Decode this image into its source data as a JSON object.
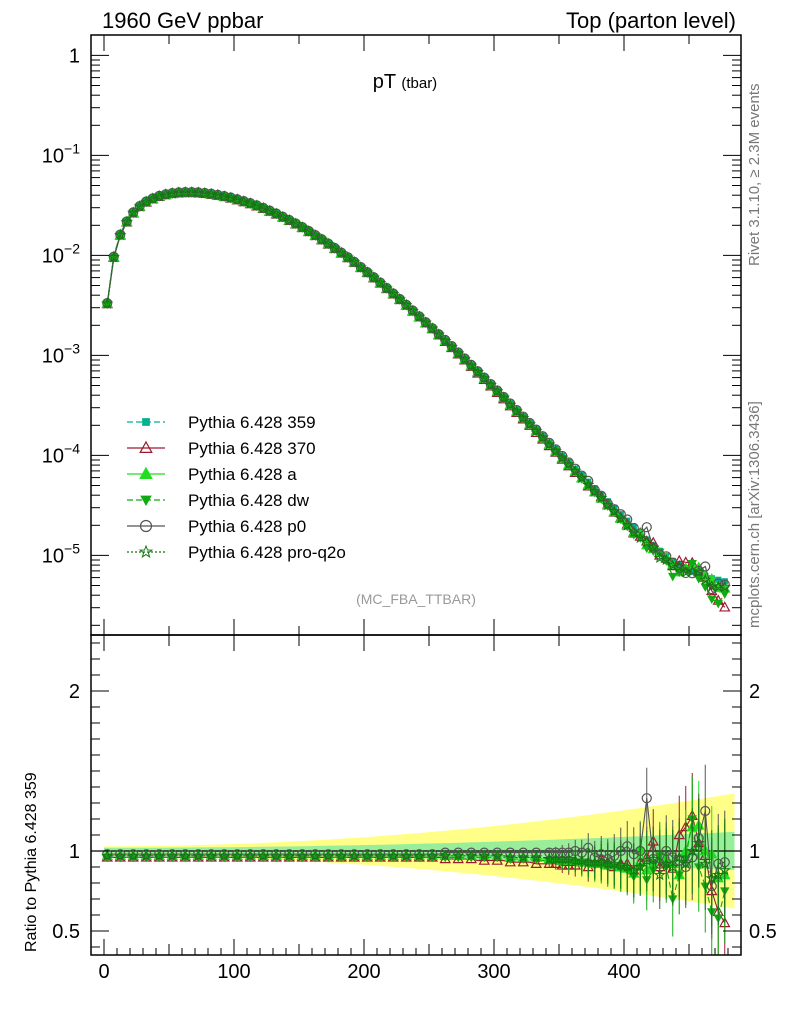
{
  "header": {
    "left": "1960 GeV ppbar",
    "right": "Top (parton level)"
  },
  "side": {
    "rivet": "Rivet 3.1.10, ≥ 2.3M events",
    "mcplots": "mcplots.cern.ch [arXiv:1306.3436]"
  },
  "chart_data": [
    {
      "type": "line",
      "panel": "main",
      "title": "pT",
      "title_sub": "(tbar)",
      "annotation": "(MC_FBA_TTBAR)",
      "yscale": "log",
      "xlim": [
        -10,
        490
      ],
      "ylim": [
        1.6e-06,
        1.6
      ],
      "y_ticks": [
        {
          "v": 1,
          "label": "1"
        },
        {
          "v": 0.1,
          "label": "10",
          "exp": "−1"
        },
        {
          "v": 0.01,
          "label": "10",
          "exp": "−2"
        },
        {
          "v": 0.001,
          "label": "10",
          "exp": "−3"
        },
        {
          "v": 0.0001,
          "label": "10",
          "exp": "−4"
        },
        {
          "v": 1e-05,
          "label": "10",
          "exp": "−5"
        }
      ],
      "legend_position": "lower-left",
      "x": [
        2.5,
        7.5,
        12.5,
        17.5,
        22.5,
        27.5,
        32.5,
        37.5,
        42.5,
        47.5,
        52.5,
        57.5,
        62.5,
        67.5,
        72.5,
        77.5,
        82.5,
        87.5,
        92.5,
        97.5,
        102.5,
        107.5,
        112.5,
        117.5,
        122.5,
        127.5,
        132.5,
        137.5,
        142.5,
        147.5,
        152.5,
        157.5,
        162.5,
        167.5,
        172.5,
        177.5,
        182.5,
        187.5,
        192.5,
        197.5,
        202.5,
        207.5,
        212.5,
        217.5,
        222.5,
        227.5,
        232.5,
        237.5,
        242.5,
        247.5,
        252.5,
        257.5,
        262.5,
        267.5,
        272.5,
        277.5,
        282.5,
        287.5,
        292.5,
        297.5,
        302.5,
        307.5,
        312.5,
        317.5,
        322.5,
        327.5,
        332.5,
        337.5,
        342.5,
        347.5,
        352.5,
        357.5,
        362.5,
        367.5,
        372.5,
        377.5,
        382.5,
        387.5,
        392.5,
        397.5,
        402.5,
        407.5,
        412.5,
        417.5,
        422.5,
        427.5,
        432.5,
        437.5,
        442.5,
        447.5,
        452.5,
        457.5,
        462.5,
        467.5,
        472.5,
        477.5
      ],
      "ref_values": [
        0.0034,
        0.0099,
        0.0165,
        0.0223,
        0.0275,
        0.0318,
        0.0353,
        0.038,
        0.0402,
        0.0418,
        0.0429,
        0.0436,
        0.0439,
        0.0439,
        0.0436,
        0.043,
        0.0422,
        0.0412,
        0.04,
        0.0387,
        0.0372,
        0.0356,
        0.034,
        0.0323,
        0.0305,
        0.0286,
        0.0268,
        0.0249,
        0.0231,
        0.0213,
        0.0196,
        0.0179,
        0.0163,
        0.0148,
        0.0134,
        0.0121,
        0.0109,
        0.0098,
        0.0088,
        0.0078,
        0.00695,
        0.00617,
        0.00546,
        0.00482,
        0.00425,
        0.00374,
        0.00328,
        0.00287,
        0.00251,
        0.00219,
        0.00191,
        0.00166,
        0.00144,
        0.00125,
        0.00108,
        0.00094,
        0.000812,
        0.000702,
        0.000606,
        0.000522,
        0.00045,
        0.000388,
        0.000334,
        0.000287,
        0.000247,
        0.000213,
        0.000183,
        0.000157,
        0.000135,
        0.000116,
        9.98e-05,
        8.58e-05,
        7.37e-05,
        6.34e-05,
        5.45e-05,
        4.68e-05,
        4.03e-05,
        3.47e-05,
        2.99e-05,
        2.58e-05,
        2.22e-05,
        1.92e-05,
        1.66e-05,
        1.44e-05,
        1.26e-05,
        1.11e-05,
        9.8e-06,
        8.8e-06,
        8e-06,
        7.4e-06,
        6.9e-06,
        6.5e-06,
        6.2e-06,
        5.9e-06,
        5.7e-06,
        5.5e-06
      ],
      "ratio_curves": {
        "r370": [
          0.96,
          0.96,
          0.96,
          0.96,
          0.96,
          0.96,
          0.96,
          0.96,
          0.96,
          0.96,
          0.96,
          0.96,
          0.96,
          0.96,
          0.96,
          0.96,
          0.96,
          0.96,
          0.96,
          0.96,
          0.96,
          0.96,
          0.96,
          0.96,
          0.96,
          0.96,
          0.96,
          0.96,
          0.96,
          0.96,
          0.96,
          0.96,
          0.96,
          0.96,
          0.96,
          0.96,
          0.96,
          0.96,
          0.96,
          0.96,
          0.96,
          0.96,
          0.96,
          0.96,
          0.96,
          0.96,
          0.96,
          0.96,
          0.96,
          0.96,
          0.96,
          0.96,
          0.95,
          0.95,
          0.95,
          0.95,
          0.95,
          0.94,
          0.94,
          0.94,
          0.94,
          0.94,
          0.93,
          0.93,
          0.93,
          0.93,
          0.92,
          0.92,
          0.92,
          0.92,
          0.91,
          0.91,
          0.91,
          0.93,
          0.9,
          0.92,
          0.95,
          0.93,
          0.9,
          0.92,
          0.92,
          0.88,
          0.93,
          0.96,
          1.06,
          0.9,
          0.95,
          0.89,
          1.1,
          1.15,
          1.22,
          1.05,
          0.97,
          0.75,
          0.62,
          0.55
        ],
        "ra": [
          0.97,
          0.97,
          0.97,
          0.97,
          0.97,
          0.97,
          0.97,
          0.97,
          0.97,
          0.97,
          0.97,
          0.97,
          0.97,
          0.97,
          0.97,
          0.97,
          0.97,
          0.97,
          0.97,
          0.97,
          0.97,
          0.97,
          0.97,
          0.97,
          0.97,
          0.97,
          0.97,
          0.97,
          0.97,
          0.97,
          0.97,
          0.97,
          0.97,
          0.97,
          0.97,
          0.97,
          0.97,
          0.97,
          0.97,
          0.97,
          0.97,
          0.97,
          0.97,
          0.97,
          0.97,
          0.97,
          0.97,
          0.97,
          0.97,
          0.97,
          0.97,
          0.97,
          0.97,
          0.97,
          0.97,
          0.97,
          0.97,
          0.97,
          0.97,
          0.97,
          0.97,
          0.97,
          0.96,
          0.96,
          0.96,
          0.96,
          0.96,
          0.95,
          0.95,
          0.95,
          0.94,
          0.94,
          0.94,
          0.93,
          0.93,
          0.92,
          0.92,
          0.91,
          0.91,
          0.9,
          0.89,
          0.86,
          1.01,
          0.88,
          0.92,
          0.95,
          0.96,
          0.92,
          0.85,
          1.0,
          1.15,
          1.16,
          1.0,
          0.98,
          0.83,
          0.85
        ],
        "rdw": [
          0.96,
          0.96,
          0.96,
          0.96,
          0.96,
          0.96,
          0.96,
          0.96,
          0.96,
          0.96,
          0.96,
          0.96,
          0.96,
          0.96,
          0.96,
          0.96,
          0.96,
          0.96,
          0.96,
          0.96,
          0.96,
          0.96,
          0.96,
          0.96,
          0.96,
          0.96,
          0.96,
          0.96,
          0.96,
          0.96,
          0.96,
          0.96,
          0.96,
          0.96,
          0.96,
          0.96,
          0.96,
          0.96,
          0.96,
          0.96,
          0.96,
          0.96,
          0.96,
          0.96,
          0.96,
          0.96,
          0.96,
          0.96,
          0.96,
          0.96,
          0.96,
          0.96,
          0.96,
          0.96,
          0.96,
          0.96,
          0.96,
          0.96,
          0.96,
          0.96,
          0.96,
          0.96,
          0.95,
          0.95,
          0.95,
          0.95,
          0.95,
          0.94,
          0.94,
          0.94,
          0.93,
          0.93,
          0.93,
          0.92,
          0.92,
          0.91,
          0.91,
          0.9,
          0.9,
          0.89,
          0.88,
          0.84,
          0.9,
          0.82,
          0.88,
          0.97,
          0.9,
          0.7,
          0.85,
          0.95,
          1.2,
          0.9,
          0.78,
          0.62,
          0.58,
          0.75
        ],
        "rp0": [
          0.98,
          0.98,
          0.98,
          0.98,
          0.98,
          0.98,
          0.98,
          0.98,
          0.98,
          0.98,
          0.98,
          0.98,
          0.98,
          0.98,
          0.98,
          0.98,
          0.98,
          0.98,
          0.98,
          0.98,
          0.98,
          0.98,
          0.98,
          0.98,
          0.98,
          0.98,
          0.98,
          0.98,
          0.98,
          0.98,
          0.98,
          0.98,
          0.98,
          0.98,
          0.98,
          0.98,
          0.98,
          0.98,
          0.98,
          0.98,
          0.98,
          0.98,
          0.98,
          0.98,
          0.98,
          0.98,
          0.98,
          0.98,
          0.98,
          0.98,
          0.98,
          0.98,
          0.99,
          0.99,
          0.99,
          0.99,
          0.99,
          0.99,
          0.99,
          0.99,
          0.99,
          0.99,
          0.99,
          0.99,
          0.99,
          0.99,
          0.99,
          0.99,
          0.99,
          0.99,
          0.99,
          0.99,
          1.0,
          0.99,
          1.02,
          0.96,
          0.98,
          0.95,
          0.97,
          1.0,
          1.03,
          0.98,
          1.0,
          1.33,
          0.95,
          0.92,
          1.0,
          0.96,
          0.94,
          0.9,
          0.96,
          1.08,
          1.25,
          0.78,
          0.92,
          0.93
        ],
        "rpro": [
          0.97,
          0.97,
          0.97,
          0.97,
          0.97,
          0.97,
          0.97,
          0.97,
          0.97,
          0.97,
          0.97,
          0.97,
          0.97,
          0.97,
          0.97,
          0.97,
          0.97,
          0.97,
          0.97,
          0.97,
          0.97,
          0.97,
          0.97,
          0.97,
          0.97,
          0.97,
          0.97,
          0.97,
          0.97,
          0.97,
          0.97,
          0.97,
          0.97,
          0.97,
          0.97,
          0.97,
          0.97,
          0.97,
          0.97,
          0.97,
          0.97,
          0.97,
          0.97,
          0.97,
          0.97,
          0.97,
          0.97,
          0.97,
          0.97,
          0.97,
          0.97,
          0.97,
          0.97,
          0.97,
          0.97,
          0.97,
          0.97,
          0.97,
          0.97,
          0.97,
          0.97,
          0.97,
          0.96,
          0.96,
          0.96,
          0.96,
          0.96,
          0.96,
          0.95,
          0.95,
          0.95,
          0.95,
          0.94,
          0.94,
          0.93,
          0.93,
          0.93,
          0.92,
          0.92,
          0.91,
          0.9,
          0.88,
          0.9,
          0.94,
          0.95,
          0.85,
          0.92,
          0.9,
          0.96,
          0.92,
          1.0,
          1.05,
          0.92,
          0.83,
          0.85,
          0.88
        ]
      },
      "series": [
        {
          "name": "Pythia 6.428 359",
          "ratio_key": null,
          "color": "#00b090",
          "dash": "6,3",
          "marker": "square"
        },
        {
          "name": "Pythia 6.428 370",
          "ratio_key": "r370",
          "color": "#9b1b30",
          "dash": "",
          "marker": "triangle-open"
        },
        {
          "name": "Pythia 6.428 a",
          "ratio_key": "ra",
          "color": "#22dd22",
          "dash": "",
          "marker": "triangle"
        },
        {
          "name": "Pythia 6.428 dw",
          "ratio_key": "rdw",
          "color": "#11aa11",
          "dash": "6,3",
          "marker": "triangle-down"
        },
        {
          "name": "Pythia 6.428 p0",
          "ratio_key": "rp0",
          "color": "#555555",
          "dash": "",
          "marker": "circle-open"
        },
        {
          "name": "Pythia 6.428 pro-q2o",
          "ratio_key": "rpro",
          "color": "#117711",
          "dash": "2,2",
          "marker": "star-open"
        }
      ]
    },
    {
      "type": "line",
      "panel": "ratio",
      "ylabel": "Ratio to Pythia 6.428 359",
      "xlim": [
        -10,
        490
      ],
      "ylim": [
        0.35,
        2.35
      ],
      "x_ticks": [
        0,
        100,
        200,
        300,
        400
      ],
      "y_ticks": [
        {
          "v": 0.5,
          "label": "0.5"
        },
        {
          "v": 1,
          "label": "1"
        },
        {
          "v": 2,
          "label": "2"
        }
      ],
      "band_inner": {
        "x_start": 0,
        "x_end": 485,
        "halfwidth_start": 0.02,
        "halfwidth_end": 0.12
      },
      "band_outer": {
        "x_start": 0,
        "x_end": 485,
        "halfwidth_start": 0.03,
        "halfwidth_end": 0.36
      }
    }
  ]
}
